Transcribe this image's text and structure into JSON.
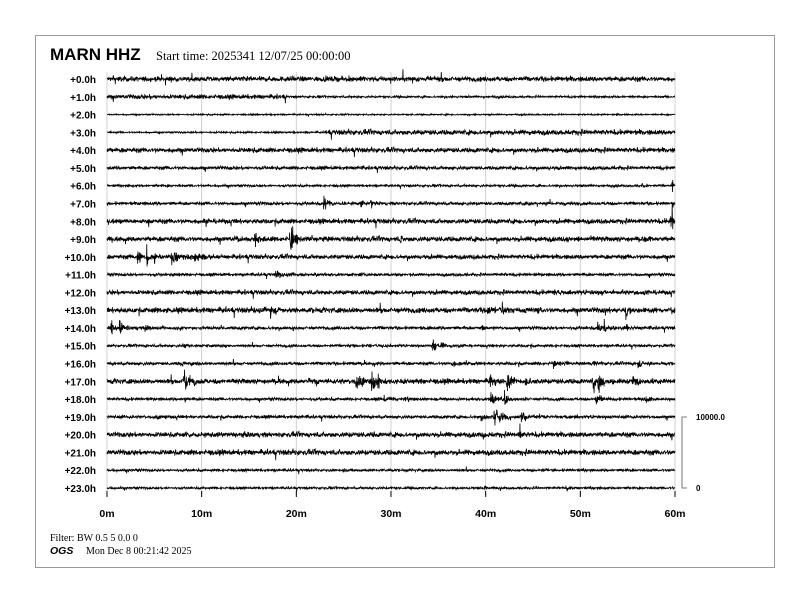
{
  "header": {
    "station": "MARN HHZ",
    "start_time": "Start time: 2025341 12/07/25 00:00:00"
  },
  "footer": {
    "filter": "Filter: BW 0.5 5 0.0 0",
    "org": "OGS",
    "generated": "Mon Dec  8 00:21:42 2025"
  },
  "colors": {
    "trace": "#000000",
    "grid": "#d0d0d0",
    "frame": "#9a9a9a"
  },
  "chart_data": {
    "type": "line",
    "subtype": "helicorder",
    "x_tick_labels": [
      "0m",
      "10m",
      "20m",
      "30m",
      "40m",
      "50m",
      "60m"
    ],
    "xlim": [
      0,
      60
    ],
    "grid": true,
    "row_labels": [
      "+0.0h",
      "+1.0h",
      "+2.0h",
      "+3.0h",
      "+4.0h",
      "+5.0h",
      "+6.0h",
      "+7.0h",
      "+8.0h",
      "+9.0h",
      "+10.0h",
      "+11.0h",
      "+12.0h",
      "+13.0h",
      "+14.0h",
      "+15.0h",
      "+16.0h",
      "+17.0h",
      "+18.0h",
      "+19.0h",
      "+20.0h",
      "+21.0h",
      "+22.0h",
      "+23.0h"
    ],
    "amplitude_scale": {
      "top_label": "10000.0",
      "bottom_label": "0",
      "max": 10000,
      "min": 0
    },
    "rows": [
      {
        "noise": 170,
        "events": []
      },
      {
        "noise": 150,
        "events": [],
        "quiet_after_min": 19,
        "quiet_noise": 70
      },
      {
        "noise": 50,
        "events": []
      },
      {
        "noise": 60,
        "events": [],
        "loud_after_min": 23,
        "loud_noise": 170
      },
      {
        "noise": 160,
        "events": []
      },
      {
        "noise": 120,
        "events": []
      },
      {
        "noise": 80,
        "events": [
          [
            56.5,
            500,
            0.2
          ],
          [
            59.7,
            1800,
            0.1
          ]
        ]
      },
      {
        "noise": 110,
        "events": [
          [
            22.9,
            1600,
            0.6
          ],
          [
            26.8,
            700,
            0.5
          ],
          [
            27.8,
            700,
            0.5
          ],
          [
            44.3,
            350,
            0.6
          ],
          [
            46.2,
            300,
            0.4
          ],
          [
            59.8,
            900,
            0.2
          ]
        ]
      },
      {
        "noise": 160,
        "events": [
          [
            1.2,
            350,
            0.4
          ],
          [
            10.2,
            250,
            0.2
          ],
          [
            59.5,
            1300,
            0.6
          ],
          [
            59.7,
            2800,
            0.1
          ]
        ]
      },
      {
        "noise": 170,
        "events": [
          [
            13.5,
            400,
            0.8
          ],
          [
            15.6,
            1200,
            0.7
          ],
          [
            16.6,
            700,
            0.3
          ],
          [
            19.3,
            2000,
            0.9
          ],
          [
            31,
            1600,
            0.1
          ],
          [
            48.5,
            250,
            0.5
          ],
          [
            56.5,
            300,
            0.5
          ]
        ]
      },
      {
        "noise": 150,
        "events": [
          [
            3.2,
            1700,
            0.5
          ],
          [
            4.2,
            1500,
            0.3
          ],
          [
            5,
            1300,
            0.2
          ],
          [
            6.8,
            900,
            2.2
          ],
          [
            9.2,
            700,
            1.6
          ]
        ]
      },
      {
        "noise": 100,
        "events": [
          [
            7,
            400,
            0.2
          ],
          [
            17.8,
            600,
            1.5
          ],
          [
            22,
            300,
            0.4
          ]
        ]
      },
      {
        "noise": 150,
        "events": [
          [
            47.2,
            600,
            0.6
          ],
          [
            52.3,
            300,
            0.4
          ],
          [
            55.8,
            350,
            0.4
          ]
        ]
      },
      {
        "noise": 180,
        "events": [
          [
            1.5,
            400,
            0.4
          ],
          [
            6.3,
            400,
            0.3
          ],
          [
            15.5,
            500,
            0.6
          ],
          [
            17.2,
            900,
            0.8
          ],
          [
            19.5,
            300,
            0.3
          ],
          [
            40.2,
            500,
            1.2
          ],
          [
            41.7,
            800,
            0.8
          ],
          [
            45.5,
            500,
            0.2
          ],
          [
            52.5,
            600,
            0.2
          ],
          [
            54.8,
            1900,
            0.3
          ],
          [
            59.5,
            800,
            0.5
          ]
        ]
      },
      {
        "noise": 110,
        "events": [
          [
            0.4,
            900,
            0.7
          ],
          [
            1.3,
            1700,
            0.5
          ],
          [
            2.1,
            500,
            0.3
          ],
          [
            4,
            600,
            0.9
          ],
          [
            19.7,
            450,
            0.2
          ],
          [
            33.3,
            400,
            0.3
          ],
          [
            39.6,
            350,
            0.5
          ],
          [
            51.8,
            800,
            0.9
          ],
          [
            52.5,
            1200,
            0.4
          ],
          [
            54.9,
            1500,
            0.1
          ]
        ]
      },
      {
        "noise": 90,
        "events": [
          [
            8,
            400,
            1.0
          ],
          [
            10.5,
            200,
            0.2
          ],
          [
            27.5,
            300,
            0.6
          ],
          [
            34.4,
            1100,
            0.5
          ],
          [
            35.3,
            700,
            0.5
          ]
        ]
      },
      {
        "noise": 110,
        "events": [
          [
            7.8,
            500,
            0.5
          ],
          [
            25.9,
            400,
            0.2
          ],
          [
            36.5,
            500,
            0.8
          ],
          [
            37.9,
            300,
            0.3
          ],
          [
            47,
            500,
            1.0
          ],
          [
            48.3,
            400,
            0.5
          ],
          [
            51.4,
            600,
            0.4
          ],
          [
            56.1,
            600,
            0.8
          ],
          [
            56.8,
            500,
            0.4
          ]
        ]
      },
      {
        "noise": 170,
        "events": [
          [
            8.1,
            1500,
            0.9
          ],
          [
            9.2,
            700,
            0.2
          ],
          [
            13.1,
            300,
            0.3
          ],
          [
            21.3,
            700,
            0.8
          ],
          [
            26.3,
            1300,
            0.9
          ],
          [
            27.9,
            1900,
            0.7
          ],
          [
            28.6,
            1400,
            0.4
          ],
          [
            40.4,
            1000,
            1.0
          ],
          [
            42.2,
            1500,
            0.6
          ],
          [
            44.2,
            500,
            0.6
          ],
          [
            51.3,
            1300,
            0.8
          ],
          [
            51.9,
            2000,
            0.7
          ],
          [
            55.5,
            800,
            0.7
          ],
          [
            57.6,
            500,
            0.3
          ]
        ]
      },
      {
        "noise": 100,
        "events": [
          [
            8.2,
            900,
            0.1
          ],
          [
            29.2,
            450,
            1.5
          ],
          [
            31.5,
            350,
            1.4
          ],
          [
            40.5,
            900,
            1.0
          ],
          [
            42,
            1300,
            0.6
          ],
          [
            43.7,
            500,
            0.3
          ],
          [
            51.6,
            1500,
            0.5
          ],
          [
            56.7,
            500,
            0.9
          ]
        ]
      },
      {
        "noise": 110,
        "events": [
          [
            4.8,
            300,
            0.7
          ],
          [
            39.5,
            800,
            0.8
          ],
          [
            40.9,
            1400,
            1.2
          ],
          [
            43.7,
            1600,
            0.6
          ],
          [
            44.8,
            400,
            0.8
          ],
          [
            48.5,
            200,
            0.4
          ]
        ]
      },
      {
        "noise": 170,
        "events": [
          [
            8.2,
            300,
            0.6
          ],
          [
            28.2,
            500,
            0.1
          ],
          [
            39.7,
            1300,
            0.1
          ],
          [
            43.6,
            1100,
            0.1
          ]
        ]
      },
      {
        "noise": 180,
        "events": []
      },
      {
        "noise": 90,
        "events": [
          [
            23.5,
            200,
            0.6
          ],
          [
            45.9,
            300,
            0.7
          ]
        ]
      },
      {
        "noise": 80,
        "events": [
          [
            39.8,
            250,
            0.7
          ],
          [
            48.6,
            700,
            0.1
          ]
        ]
      }
    ]
  }
}
